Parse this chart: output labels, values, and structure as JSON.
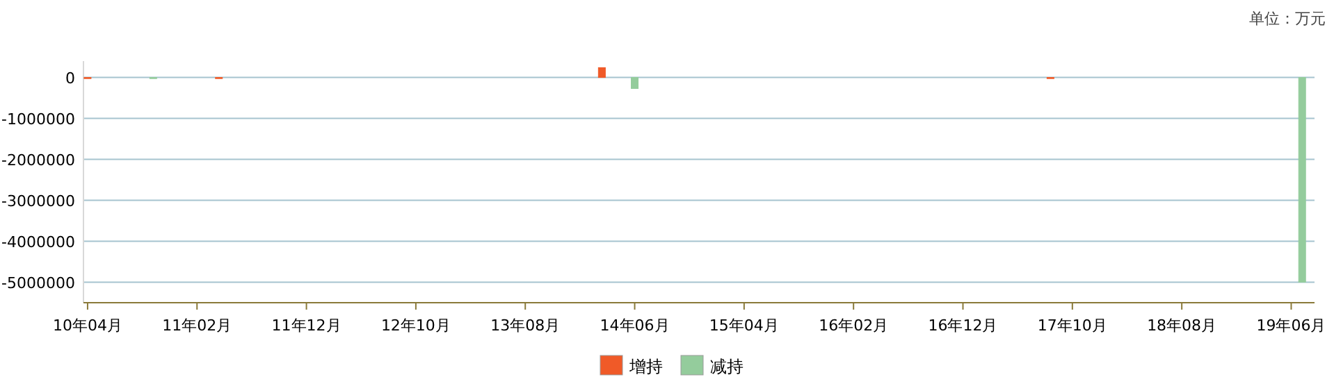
{
  "chart_data": {
    "type": "bar",
    "annotations": [
      "单位：万元"
    ],
    "series": [
      {
        "name": "增持",
        "color": "#f05a28",
        "x": [
          "2010-04",
          "2011-04",
          "2014-03",
          "2017-08"
        ],
        "values": [
          0,
          0,
          240000,
          0
        ]
      },
      {
        "name": "减持",
        "color": "#94cc9c",
        "x": [
          "2010-10",
          "2014-06",
          "2019-07"
        ],
        "values": [
          0,
          -270000,
          -5000000
        ]
      }
    ],
    "xlim": [
      "2010-03-20",
      "2019-08-05"
    ],
    "xticks": [
      {
        "value": "2010-04",
        "label": "10年04月"
      },
      {
        "value": "2011-02",
        "label": "11年02月"
      },
      {
        "value": "2011-12",
        "label": "11年12月"
      },
      {
        "value": "2012-10",
        "label": "12年10月"
      },
      {
        "value": "2013-08",
        "label": "13年08月"
      },
      {
        "value": "2014-06",
        "label": "14年06月"
      },
      {
        "value": "2015-04",
        "label": "15年04月"
      },
      {
        "value": "2016-02",
        "label": "16年02月"
      },
      {
        "value": "2016-12",
        "label": "16年12月"
      },
      {
        "value": "2017-10",
        "label": "17年10月"
      },
      {
        "value": "2018-08",
        "label": "18年08月"
      },
      {
        "value": "2019-06",
        "label": "19年06月"
      }
    ],
    "ylim": [
      -5500000,
      400000
    ],
    "yticks": [
      0,
      -1000000,
      -2000000,
      -3000000,
      -4000000,
      -5000000
    ],
    "grid": "y",
    "legend": "bottom"
  }
}
